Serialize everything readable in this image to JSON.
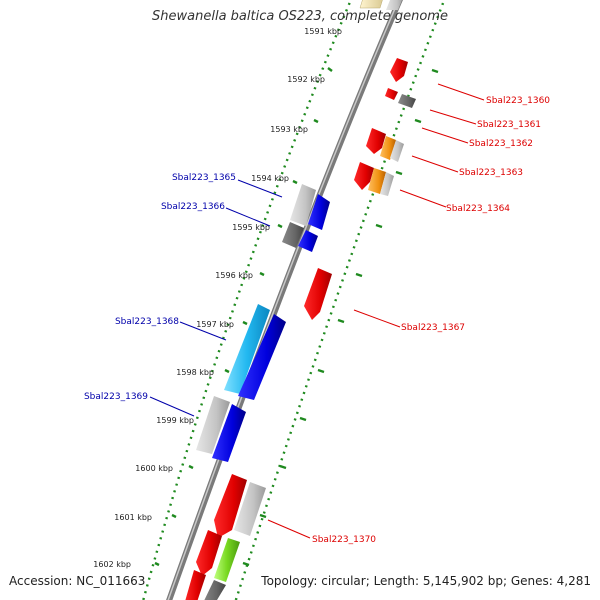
{
  "title": "Shewanella baltica OS223, complete genome",
  "footer": {
    "accession_label": "Accession:",
    "accession": "NC_011663",
    "topology_label": "Topology:",
    "topology": "circular;",
    "length_label": "Length:",
    "length": "5,145,902 bp;",
    "genes_label": "Genes:",
    "genes": "4,281"
  },
  "colors": {
    "forward_label": "#dd0000",
    "reverse_label": "#0000aa",
    "tick": "#228822",
    "backbone": "#888888"
  },
  "ticks": [
    "1591 kbp",
    "1592 kbp",
    "1593 kbp",
    "1594 kbp",
    "1595 kbp",
    "1596 kbp",
    "1597 kbp",
    "1598 kbp",
    "1599 kbp",
    "1600 kbp",
    "1601 kbp",
    "1602 kbp"
  ],
  "forward_genes": [
    "Sbal223_1360",
    "Sbal223_1361",
    "Sbal223_1362",
    "Sbal223_1363",
    "Sbal223_1364",
    "Sbal223_1367",
    "Sbal223_1370"
  ],
  "reverse_genes": [
    "Sbal223_1365",
    "Sbal223_1366",
    "Sbal223_1368",
    "Sbal223_1369"
  ]
}
